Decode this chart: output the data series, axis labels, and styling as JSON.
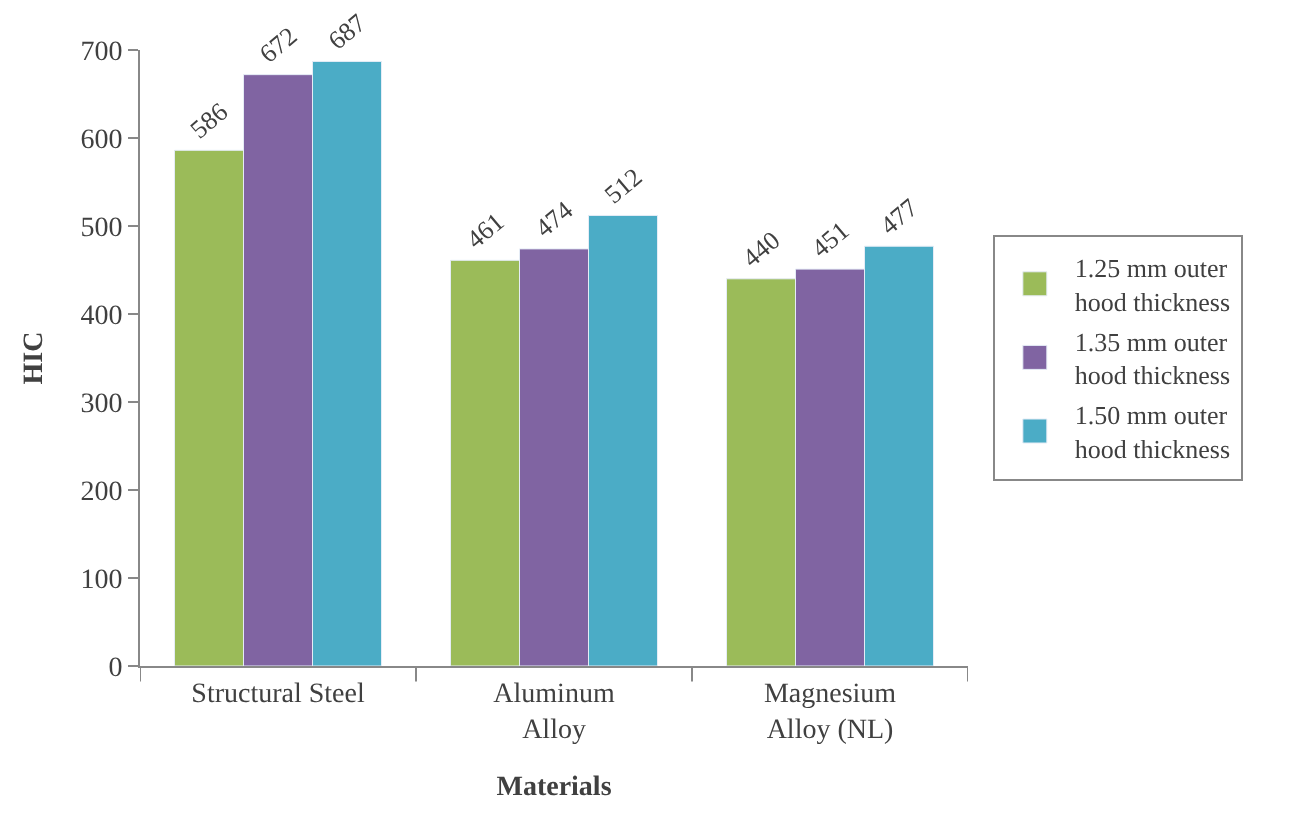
{
  "chart_data": {
    "type": "bar",
    "xlabel": "Materials",
    "ylabel": "HIC",
    "categories": [
      "Structural Steel",
      "Aluminum Alloy",
      "Magnesium Alloy (NL)"
    ],
    "series": [
      {
        "name": "1.25 mm outer hood thickness",
        "color": "#9bbb59",
        "values": [
          586,
          461,
          440
        ]
      },
      {
        "name": "1.35 mm outer hood thickness",
        "color": "#8064a2",
        "values": [
          672,
          474,
          451
        ]
      },
      {
        "name": "1.50 mm outer hood thickness",
        "color": "#4bacc6",
        "values": [
          687,
          512,
          477
        ]
      }
    ],
    "ylim": [
      0,
      700
    ],
    "yticks": [
      0,
      100,
      200,
      300,
      400,
      500,
      600,
      700
    ],
    "data_labels": true,
    "legend": "right"
  }
}
